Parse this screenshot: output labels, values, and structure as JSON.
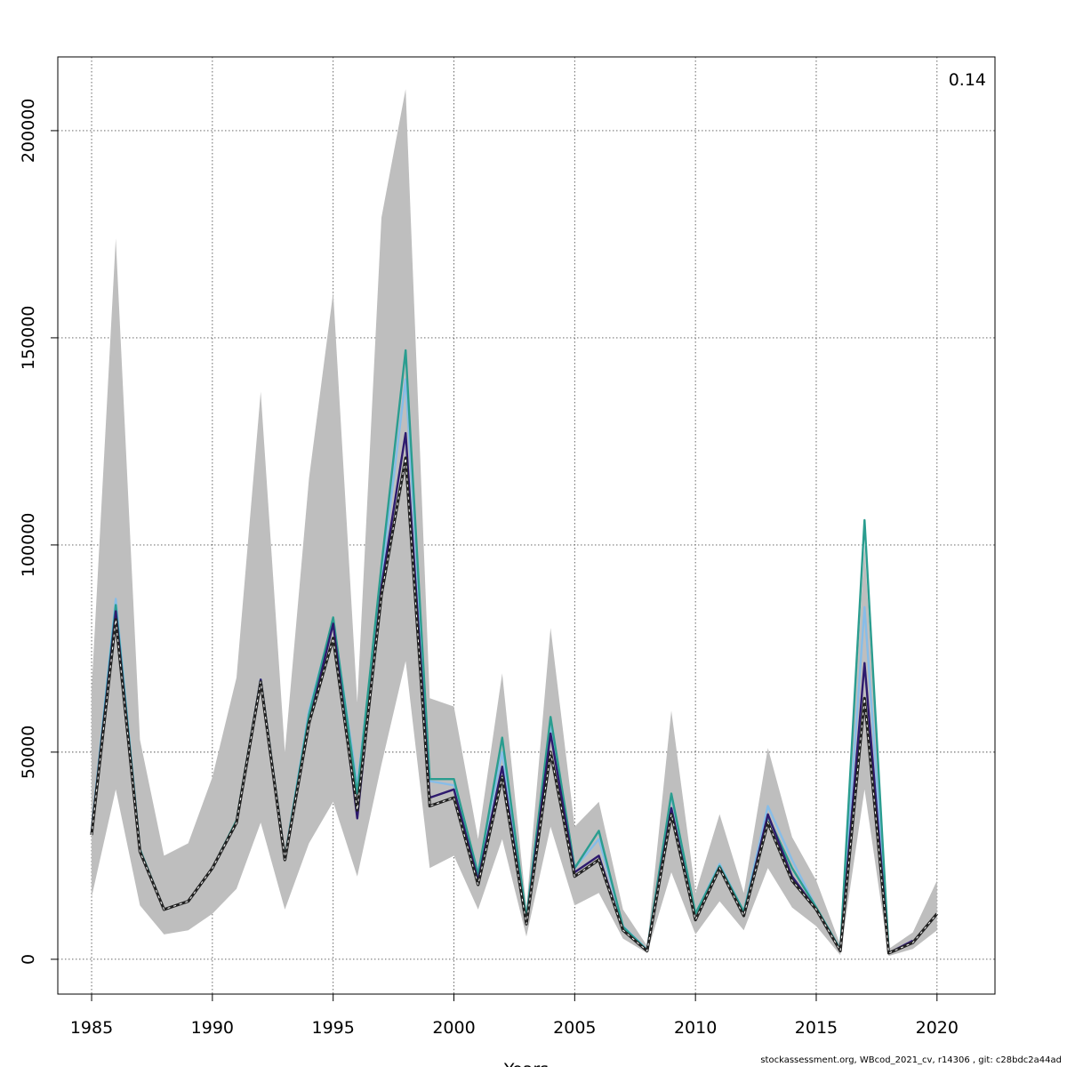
{
  "chart_data": {
    "type": "line",
    "title": "",
    "corner_label": "0.14",
    "xlabel": "Years",
    "ylabel": "",
    "xlim": [
      1983.6,
      2022.4
    ],
    "ylim": [
      -8400,
      217800
    ],
    "x_ticks": [
      1985,
      1990,
      1995,
      2000,
      2005,
      2010,
      2015,
      2020
    ],
    "y_ticks": [
      0,
      50000,
      100000,
      150000,
      200000
    ],
    "grid": true,
    "legend": "none",
    "confidence_band": {
      "color": "#bebebe",
      "x": [
        1985,
        1986,
        1987,
        1988,
        1989,
        1990,
        1991,
        1992,
        1993,
        1994,
        1995,
        1996,
        1997,
        1998,
        1999,
        2000,
        2001,
        2002,
        2003,
        2004,
        2005,
        2006,
        2007,
        2008,
        2009,
        2010,
        2011,
        2012,
        2013,
        2014,
        2015,
        2016,
        2017,
        2018,
        2019,
        2020
      ],
      "lower": [
        15000,
        41000,
        13000,
        6000,
        7000,
        11000,
        17000,
        33000,
        12000,
        28000,
        38000,
        20000,
        47000,
        72000,
        22000,
        25000,
        12000,
        29000,
        5500,
        32000,
        13000,
        16000,
        5000,
        1500,
        21000,
        6000,
        14000,
        7000,
        22000,
        12500,
        8000,
        1000,
        41000,
        800,
        2500,
        7000
      ],
      "upper": [
        65000,
        174000,
        53000,
        25000,
        28000,
        44000,
        68000,
        137000,
        50000,
        116000,
        161000,
        62000,
        179000,
        210000,
        63000,
        61000,
        29000,
        69000,
        12500,
        80000,
        32000,
        38000,
        12000,
        3200,
        60000,
        16000,
        35000,
        16000,
        51000,
        29500,
        19000,
        3500,
        100000,
        2500,
        6500,
        19000
      ]
    },
    "series": [
      {
        "color": "#87bde8",
        "x": [
          1985,
          1986,
          1987,
          1988,
          1989,
          1990,
          1991,
          1992,
          1993,
          1994,
          1995,
          1996,
          1997,
          1998,
          1999,
          2000,
          2001,
          2002,
          2003,
          2004,
          2005,
          2006,
          2007,
          2008,
          2009,
          2010,
          2011,
          2012,
          2013,
          2014,
          2015,
          2016,
          2017,
          2018
        ],
        "values": [
          31000,
          87000,
          26500,
          12000,
          14000,
          22000,
          33000,
          67500,
          24500,
          60000,
          82000,
          42000,
          92000,
          140000,
          43000,
          42000,
          21000,
          50000,
          10000,
          56000,
          22000,
          29000,
          8000,
          2300,
          39500,
          11000,
          23000,
          11500,
          37000,
          24000,
          12500,
          2400,
          85000,
          2000
        ]
      },
      {
        "color": "#2a9d8f",
        "x": [
          1985,
          1986,
          1987,
          1988,
          1989,
          1990,
          1991,
          1992,
          1993,
          1994,
          1995,
          1996,
          1997,
          1998,
          1999,
          2000,
          2001,
          2002,
          2003,
          2004,
          2005,
          2006,
          2007,
          2008,
          2009,
          2010,
          2011,
          2012,
          2013,
          2014,
          2015,
          2016,
          2017,
          2018
        ],
        "values": [
          30500,
          85500,
          26500,
          12000,
          14000,
          22000,
          33500,
          67500,
          24500,
          59000,
          82500,
          40000,
          95000,
          147000,
          43500,
          43500,
          20500,
          53500,
          9800,
          58500,
          22000,
          31000,
          7800,
          2200,
          40000,
          11000,
          22500,
          11500,
          34500,
          22000,
          12500,
          2300,
          106000,
          1800
        ]
      },
      {
        "color": "#2e1a6e",
        "x": [
          1985,
          1986,
          1987,
          1988,
          1989,
          1990,
          1991,
          1992,
          1993,
          1994,
          1995,
          1996,
          1997,
          1998,
          1999,
          2000,
          2001,
          2002,
          2003,
          2004,
          2005,
          2006,
          2007,
          2008,
          2009,
          2010,
          2011,
          2012,
          2013,
          2014,
          2015,
          2016,
          2017,
          2018,
          2019
        ],
        "values": [
          30500,
          84000,
          26000,
          12000,
          14000,
          22000,
          33000,
          67500,
          24000,
          57000,
          81000,
          34000,
          90000,
          127000,
          39000,
          41000,
          19000,
          46500,
          8500,
          54500,
          21000,
          25000,
          7000,
          2000,
          36500,
          9500,
          22000,
          10500,
          35000,
          20000,
          12000,
          2000,
          71500,
          1500,
          4500
        ]
      },
      {
        "color": "#222222",
        "dashed": true,
        "x": [
          1985,
          1986,
          1987,
          1988,
          1989,
          1990,
          1991,
          1992,
          1993,
          1994,
          1995,
          1996,
          1997,
          1998,
          1999,
          2000,
          2001,
          2002,
          2003,
          2004,
          2005,
          2006,
          2007,
          2008,
          2009,
          2010,
          2011,
          2012,
          2013,
          2014,
          2015,
          2016,
          2017,
          2018,
          2019,
          2020
        ],
        "values": [
          30000,
          82000,
          26000,
          12000,
          14000,
          22000,
          33000,
          67000,
          24000,
          57000,
          77500,
          36000,
          88000,
          121000,
          37000,
          39000,
          18000,
          44000,
          8500,
          50000,
          20000,
          24000,
          7000,
          2000,
          35000,
          9500,
          22000,
          10500,
          33000,
          19000,
          12000,
          2000,
          63000,
          1500,
          4000,
          11000
        ]
      }
    ]
  },
  "footer": {
    "note": "stockassessment.org, WBcod_2021_cv, r14306 , git: c28bdc2a44ad"
  }
}
